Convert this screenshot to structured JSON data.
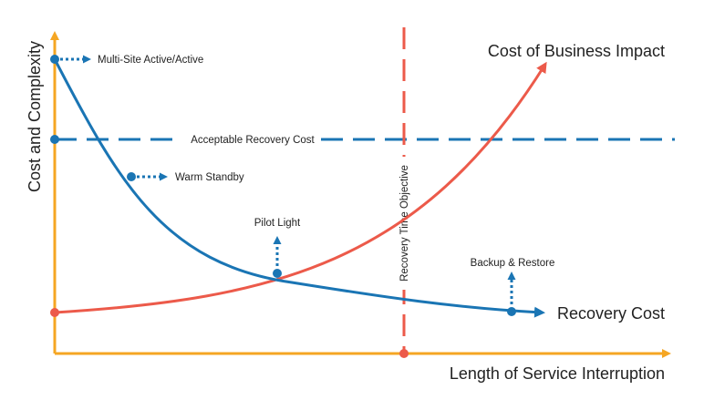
{
  "labels": {
    "y_axis": "Cost and Complexity",
    "x_axis": "Length of Service Interruption",
    "business_impact": "Cost of Business Impact",
    "recovery_cost": "Recovery Cost",
    "acceptable_cost": "Acceptable Recovery Cost",
    "rto": "Recovery Time Objective",
    "multi_site": "Multi-Site Active/Active",
    "warm_standby": "Warm Standby",
    "pilot_light": "Pilot Light",
    "backup_restore": "Backup & Restore"
  },
  "colors": {
    "axis": "#f5a623",
    "recovery": "#1a75b4",
    "impact": "#ec5a4a",
    "text": "#222222"
  }
}
